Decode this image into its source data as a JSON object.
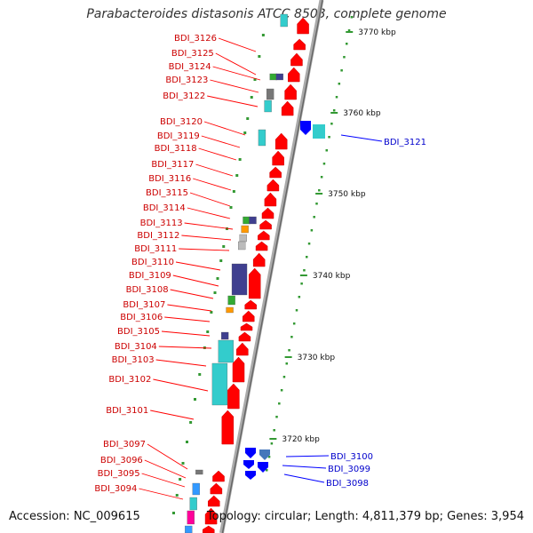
{
  "title": "Parabacteroides distasonis ATCC 8503, complete genome",
  "accession": "Accession: NC_009615",
  "summary": "Topology: circular; Length: 4,811,379 bp; Genes: 3,954",
  "ruler": [
    {
      "label": "3770 kbp"
    },
    {
      "label": "3760 kbp"
    },
    {
      "label": "3750 kbp"
    },
    {
      "label": "3740 kbp"
    },
    {
      "label": "3730 kbp"
    },
    {
      "label": "3720 kbp"
    }
  ],
  "genes_left": [
    "BDI_3126",
    "BDI_3125",
    "BDI_3124",
    "BDI_3123",
    "BDI_3122",
    "BDI_3120",
    "BDI_3119",
    "BDI_3118",
    "BDI_3117",
    "BDI_3116",
    "BDI_3115",
    "BDI_3114",
    "BDI_3113",
    "BDI_3112",
    "BDI_3111",
    "BDI_3110",
    "BDI_3109",
    "BDI_3108",
    "BDI_3107",
    "BDI_3106",
    "BDI_3105",
    "BDI_3104",
    "BDI_3103",
    "BDI_3102",
    "BDI_3101",
    "BDI_3097",
    "BDI_3096",
    "BDI_3095",
    "BDI_3094"
  ],
  "genes_right": [
    "BDI_3121",
    "BDI_3100",
    "BDI_3099",
    "BDI_3098"
  ],
  "colors": {
    "forward": "#ff0000",
    "reverse": "#0000ff",
    "left_label": "#cc0000",
    "right_label": "#0000cc",
    "backbone": "#999999",
    "cog_cyan": "#33cccc",
    "cog_navy": "#3f3f8f",
    "cog_gray": "#777777",
    "cog_silver": "#bbbbbb",
    "cog_green": "#33aa33",
    "cog_orange": "#ff9900",
    "cog_magenta": "#ff0099",
    "cog_blue": "#3399ff",
    "tick": "#339933"
  }
}
